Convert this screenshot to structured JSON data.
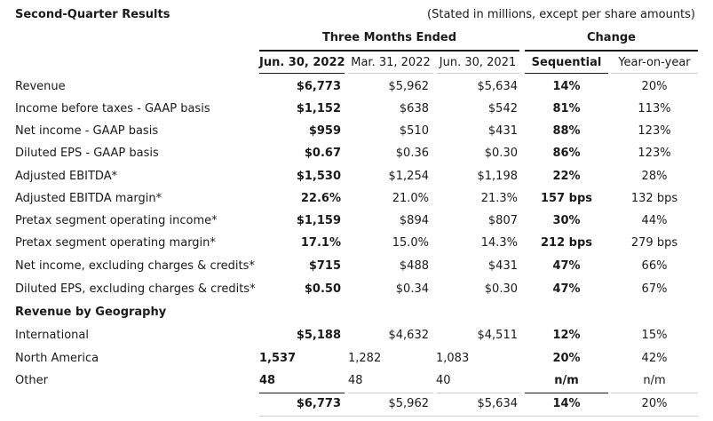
{
  "title": "Second-Quarter Results",
  "note": "(Stated in millions, except per share amounts)",
  "group_headers": {
    "three_months": "Three Months Ended",
    "change": "Change"
  },
  "columns": {
    "jun2022": "Jun. 30, 2022",
    "mar2022": "Mar. 31, 2022",
    "jun2021": "Jun. 30, 2021",
    "sequential": "Sequential",
    "yoy": "Year-on-year"
  },
  "rows": [
    {
      "label": "Revenue",
      "jun2022": "$6,773",
      "mar2022": "$5,962",
      "jun2021": "$5,634",
      "seq": "14%",
      "yoy": "20%"
    },
    {
      "label": "Income before taxes - GAAP basis",
      "jun2022": "$1,152",
      "mar2022": "$638",
      "jun2021": "$542",
      "seq": "81%",
      "yoy": "113%"
    },
    {
      "label": "Net income - GAAP basis",
      "jun2022": "$959",
      "mar2022": "$510",
      "jun2021": "$431",
      "seq": "88%",
      "yoy": "123%"
    },
    {
      "label": "Diluted EPS - GAAP basis",
      "jun2022": "$0.67",
      "mar2022": "$0.36",
      "jun2021": "$0.30",
      "seq": "86%",
      "yoy": "123%"
    },
    {
      "label": "Adjusted EBITDA*",
      "jun2022": "$1,530",
      "mar2022": "$1,254",
      "jun2021": "$1,198",
      "seq": "22%",
      "yoy": "28%"
    },
    {
      "label": "Adjusted EBITDA margin*",
      "jun2022": "22.6%",
      "mar2022": "21.0%",
      "jun2021": "21.3%",
      "seq": "157 bps",
      "yoy": "132 bps"
    },
    {
      "label": "Pretax segment operating income*",
      "jun2022": "$1,159",
      "mar2022": "$894",
      "jun2021": "$807",
      "seq": "30%",
      "yoy": "44%"
    },
    {
      "label": "Pretax segment operating margin*",
      "jun2022": "17.1%",
      "mar2022": "15.0%",
      "jun2021": "14.3%",
      "seq": "212 bps",
      "yoy": "279 bps"
    },
    {
      "label": "Net income, excluding charges & credits*",
      "jun2022": "$715",
      "mar2022": "$488",
      "jun2021": "$431",
      "seq": "47%",
      "yoy": "66%"
    },
    {
      "label": "Diluted EPS, excluding charges & credits*",
      "jun2022": "$0.50",
      "mar2022": "$0.34",
      "jun2021": "$0.30",
      "seq": "47%",
      "yoy": "67%"
    }
  ],
  "geo_header": "Revenue by Geography",
  "geo_rows": [
    {
      "label": "International",
      "jun2022": "$5,188",
      "mar2022": "$4,632",
      "jun2021": "$4,511",
      "seq": "12%",
      "yoy": "15%"
    },
    {
      "label": "North America",
      "jun2022": "1,537",
      "mar2022": "1,282",
      "jun2021": "1,083",
      "seq": "20%",
      "yoy": "42%"
    },
    {
      "label": "Other",
      "jun2022": "48",
      "mar2022": "48",
      "jun2021": "40",
      "seq": "n/m",
      "yoy": "n/m"
    }
  ],
  "total": {
    "jun2022": "$6,773",
    "mar2022": "$5,962",
    "jun2021": "$5,634",
    "seq": "14%",
    "yoy": "20%"
  }
}
